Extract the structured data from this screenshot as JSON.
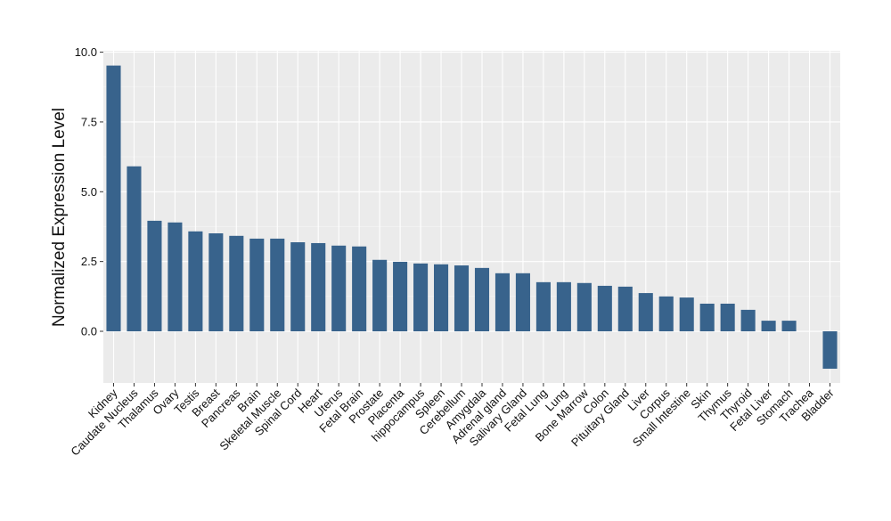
{
  "chart_data": {
    "type": "bar",
    "y_label": "Normalized Expression Level",
    "categories": [
      "Kidney",
      "Caudate Nucleus",
      "Thalamus",
      "Ovary",
      "Testis",
      "Breast",
      "Pancreas",
      "Brain",
      "Skeletal Muscle",
      "Spinal Cord",
      "Heart",
      "Uterus",
      "Fetal Brain",
      "Prostate",
      "Placenta",
      "hippocampus",
      "Spleen",
      "Cerebellum",
      "Amygdala",
      "Adrenal gland",
      "Salivary Gland",
      "Fetal Lung",
      "Lung",
      "Bone Marrow",
      "Colon",
      "Pituitary Gland",
      "Liver",
      "Corpus",
      "Small Intestine",
      "Skin",
      "Thymus",
      "Thyroid",
      "Fetal Liver",
      "Stomach",
      "Trachea",
      "Bladder"
    ],
    "values": [
      9.52,
      5.91,
      3.96,
      3.9,
      3.58,
      3.51,
      3.42,
      3.32,
      3.32,
      3.19,
      3.16,
      3.07,
      3.04,
      2.56,
      2.49,
      2.43,
      2.4,
      2.36,
      2.27,
      2.08,
      2.08,
      1.76,
      1.76,
      1.73,
      1.63,
      1.6,
      1.37,
      1.25,
      1.21,
      0.99,
      0.99,
      0.77,
      0.38,
      0.38,
      0,
      -1.34
    ],
    "color": "#38638c",
    "ylim": [
      -1.85,
      10.05
    ],
    "yticks": [
      {
        "value": 0,
        "label": "0.0"
      },
      {
        "value": 2.5,
        "label": "2.5"
      },
      {
        "value": 5,
        "label": "5.0"
      },
      {
        "value": 7.5,
        "label": "7.5"
      },
      {
        "value": 10,
        "label": "10.0"
      }
    ],
    "grid": true
  }
}
